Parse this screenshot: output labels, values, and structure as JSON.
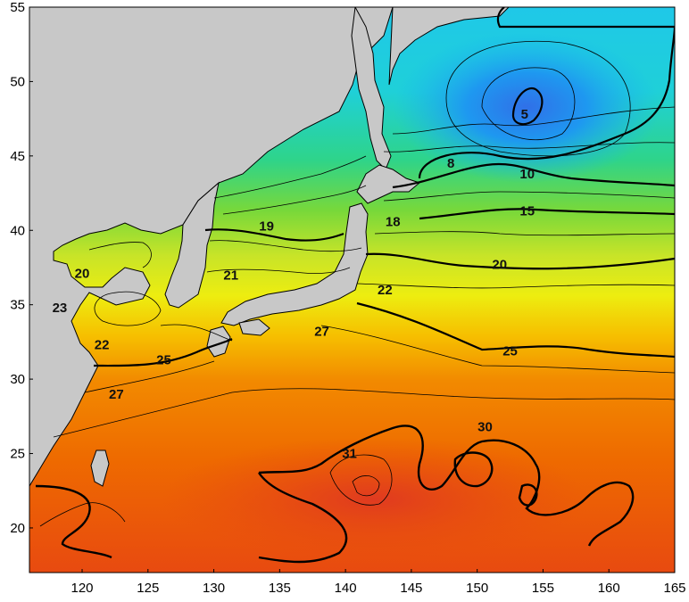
{
  "chart_data": {
    "type": "heatmap",
    "title": "",
    "xlabel": "",
    "ylabel": "",
    "xlim": [
      116,
      165
    ],
    "ylim": [
      17,
      55
    ],
    "x_ticks": [
      "120",
      "125",
      "130",
      "135",
      "140",
      "145",
      "150",
      "155",
      "160",
      "165"
    ],
    "x_tick_values": [
      120,
      125,
      130,
      135,
      140,
      145,
      150,
      155,
      160,
      165
    ],
    "y_ticks": [
      "20",
      "25",
      "30",
      "35",
      "40",
      "45",
      "50",
      "55"
    ],
    "y_tick_values": [
      20,
      25,
      30,
      35,
      40,
      45,
      50,
      55
    ],
    "contour_labels": [
      {
        "text": "5",
        "lon": 153.6,
        "lat": 47.8
      },
      {
        "text": "8",
        "lon": 148.0,
        "lat": 44.5
      },
      {
        "text": "10",
        "lon": 153.8,
        "lat": 43.8
      },
      {
        "text": "15",
        "lon": 153.8,
        "lat": 41.3
      },
      {
        "text": "18",
        "lon": 143.6,
        "lat": 40.6
      },
      {
        "text": "19",
        "lon": 134.0,
        "lat": 40.3
      },
      {
        "text": "20",
        "lon": 120.0,
        "lat": 37.1
      },
      {
        "text": "20",
        "lon": 151.7,
        "lat": 37.7
      },
      {
        "text": "21",
        "lon": 131.3,
        "lat": 37.0
      },
      {
        "text": "22",
        "lon": 143.0,
        "lat": 36.0
      },
      {
        "text": "22",
        "lon": 121.5,
        "lat": 32.3
      },
      {
        "text": "23",
        "lon": 118.3,
        "lat": 34.8
      },
      {
        "text": "25",
        "lon": 126.2,
        "lat": 31.3
      },
      {
        "text": "25",
        "lon": 152.5,
        "lat": 31.9
      },
      {
        "text": "27",
        "lon": 122.6,
        "lat": 29.0
      },
      {
        "text": "27",
        "lon": 138.2,
        "lat": 33.2
      },
      {
        "text": "30",
        "lon": 150.6,
        "lat": 26.8
      },
      {
        "text": "31",
        "lon": 140.3,
        "lat": 25.0
      }
    ],
    "colors": {
      "land": "#c8c8c8",
      "coast": "#000000",
      "frame": "#000000",
      "sst_scale": [
        "#1ab2f0",
        "#1fc6e8",
        "#20d6c0",
        "#2ed48a",
        "#4cd65a",
        "#78d83a",
        "#a8dd30",
        "#d3e520",
        "#eded10",
        "#f5d800",
        "#f6b200",
        "#f28a00",
        "#ee6a00",
        "#ec5010",
        "#e63e10"
      ]
    }
  }
}
